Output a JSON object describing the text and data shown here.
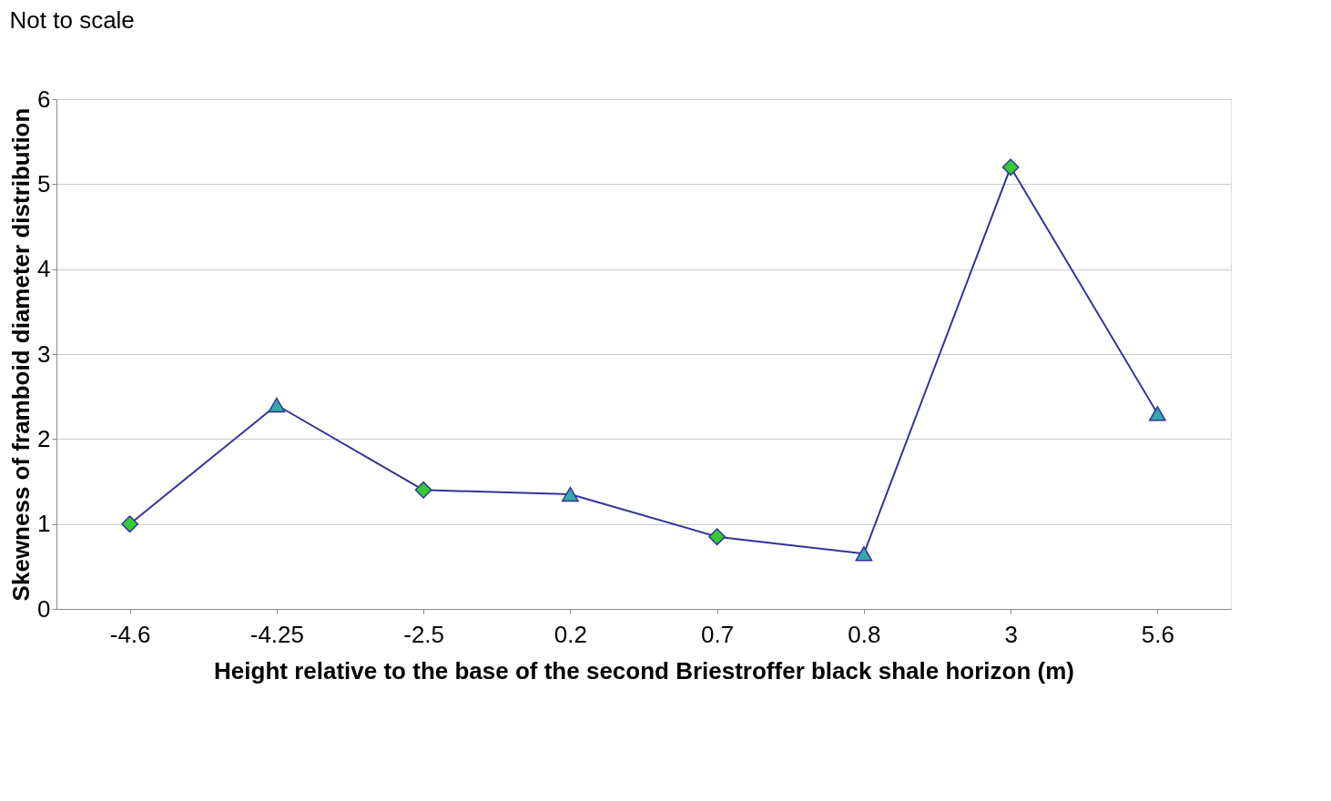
{
  "chart_data": {
    "type": "line",
    "xlabel": "Height relative to the base of the second Briestroffer black shale horizon (m)",
    "ylabel": "Skewness of framboid diameter distribution",
    "annotations": [
      "Not to scale"
    ],
    "categories": [
      "-4.6",
      "-4.25",
      "-2.5",
      "0.2",
      "0.7",
      "0.8",
      "3",
      "5.6"
    ],
    "series": [
      {
        "type": "line",
        "color": "#333399",
        "marker": "none",
        "line_style": "solid",
        "values": [
          1.0,
          2.4,
          1.4,
          1.35,
          0.85,
          0.65,
          5.2,
          2.3
        ]
      },
      {
        "type": "scatter",
        "color": "#33cc33",
        "marker": "diamond",
        "x": [
          "-4.6",
          "-2.5",
          "0.7",
          "3"
        ],
        "values": [
          1.0,
          1.4,
          0.85,
          5.2
        ]
      },
      {
        "type": "scatter",
        "color": "#33aaaa",
        "marker": "triangle",
        "x": [
          "-4.25",
          "0.2",
          "0.8",
          "5.6"
        ],
        "values": [
          2.4,
          1.35,
          0.65,
          2.3
        ]
      }
    ],
    "ylim": [
      0,
      6
    ],
    "yticks": [
      0,
      1,
      2,
      3,
      4,
      5,
      6
    ],
    "grid": "y"
  }
}
